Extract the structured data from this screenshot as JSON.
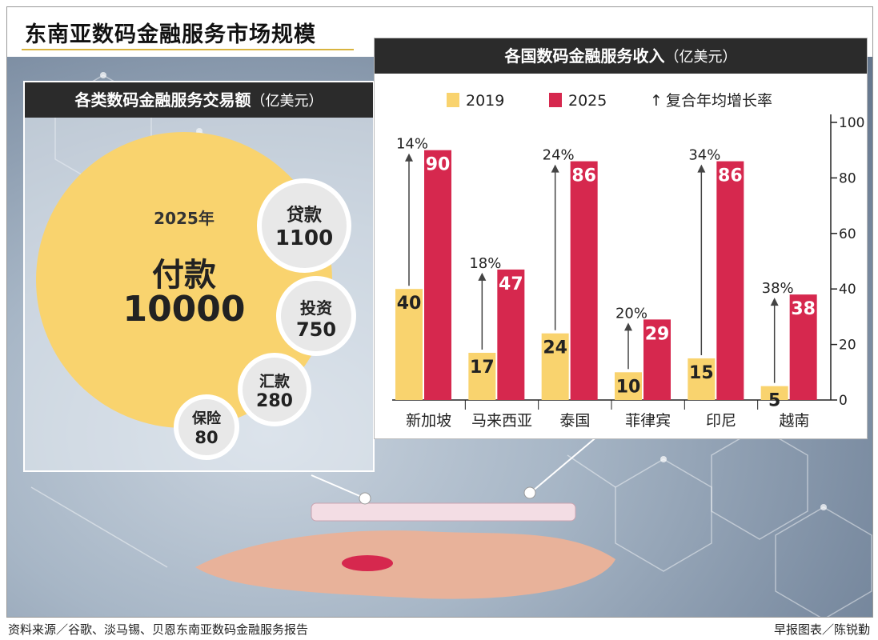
{
  "title": "东南亚数码金融服务市场规模",
  "left_panel": {
    "heading": "各类数码金融服务交易额",
    "unit": "（亿美元）",
    "year": "2025年",
    "main": {
      "label": "付款",
      "value": "10000"
    },
    "items": [
      {
        "label": "贷款",
        "value": "1100"
      },
      {
        "label": "投资",
        "value": "750"
      },
      {
        "label": "汇款",
        "value": "280"
      },
      {
        "label": "保险",
        "value": "80"
      }
    ]
  },
  "right_panel": {
    "heading": "各国数码金融服务收入",
    "unit": "（亿美元）"
  },
  "legend_growth": "复合年均增长率",
  "colors": {
    "series_2019": "#f9d36e",
    "series_2025": "#d6284e",
    "payment_circle": "#f9d36e"
  },
  "chart_data": {
    "type": "bar",
    "title": "各国数码金融服务收入（亿美元）",
    "categories": [
      "新加坡",
      "马来西亚",
      "泰国",
      "菲律宾",
      "印尼",
      "越南"
    ],
    "series": [
      {
        "name": "2019",
        "values": [
          40,
          17,
          24,
          10,
          15,
          5
        ]
      },
      {
        "name": "2025",
        "values": [
          90,
          47,
          86,
          29,
          86,
          38
        ]
      }
    ],
    "growth_rates": [
      "14%",
      "18%",
      "24%",
      "20%",
      "34%",
      "38%"
    ],
    "ylim": [
      0,
      100
    ],
    "yticks": [
      0,
      20,
      40,
      60,
      80,
      100
    ],
    "grid": false,
    "legend_position": "top"
  },
  "footer": {
    "source": "资料来源／谷歌、淡马锡、贝恩东南亚数码金融服务报告",
    "credit": "早报图表／陈锐勤"
  }
}
